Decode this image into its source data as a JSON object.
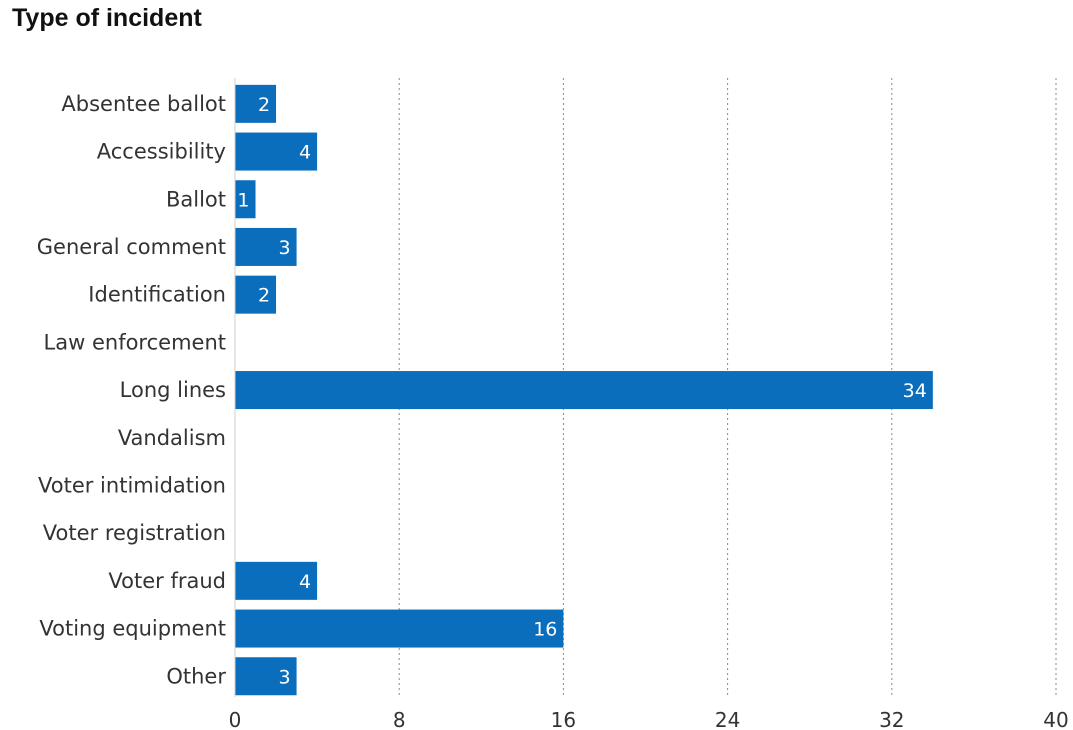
{
  "chart_data": {
    "type": "bar",
    "orientation": "horizontal",
    "title": "Type of incident",
    "categories": [
      "Absentee ballot",
      "Accessibility",
      "Ballot",
      "General comment",
      "Identification",
      "Law enforcement",
      "Long lines",
      "Vandalism",
      "Voter intimidation",
      "Voter registration",
      "Voter fraud",
      "Voting equipment",
      "Other"
    ],
    "values": [
      2,
      4,
      1,
      3,
      2,
      0,
      34,
      0,
      0,
      0,
      4,
      16,
      3
    ],
    "xlim": [
      0,
      40
    ],
    "xticks": [
      0,
      8,
      16,
      24,
      32,
      40
    ],
    "grid": "vertical dotted",
    "bar_color": "#0a6ebd"
  }
}
